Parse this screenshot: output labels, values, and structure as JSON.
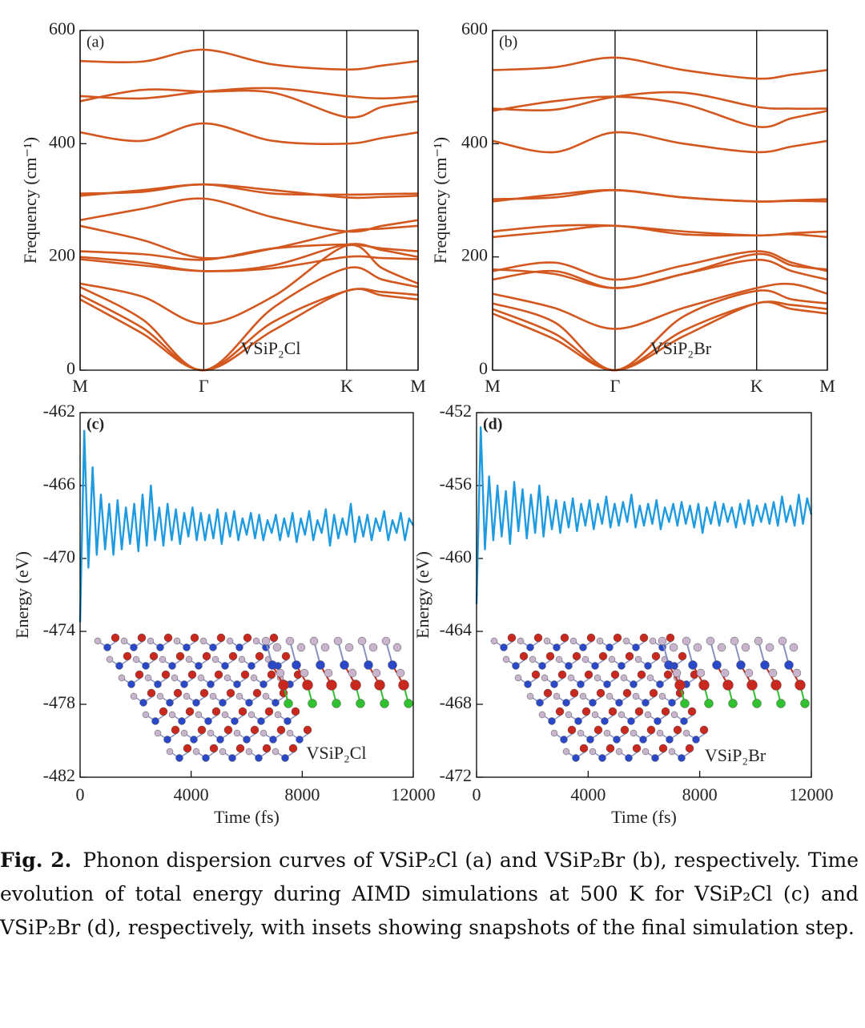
{
  "chart_data": [
    {
      "type": "line",
      "panel_label": "(a)",
      "annotation": "VSiP₂Cl",
      "ylabel": "Frequency (cm⁻¹)",
      "color": "#d2581f",
      "xgrid": true,
      "x": [
        0,
        0.29,
        0.577,
        0.9,
        1.244,
        1.41,
        1.577
      ],
      "xlim": [
        0,
        1.577
      ],
      "xticks": [
        {
          "value": 0,
          "label": "M"
        },
        {
          "value": 0.577,
          "label": "Γ"
        },
        {
          "value": 1.244,
          "label": "K"
        },
        {
          "value": 1.577,
          "label": "M"
        }
      ],
      "ylim": [
        0,
        600
      ],
      "yticks": [
        0,
        200,
        400,
        600
      ],
      "series": [
        {
          "values": [
            125,
            65,
            0,
            70,
            140,
            132,
            125
          ]
        },
        {
          "values": [
            133,
            75,
            0,
            85,
            140,
            138,
            133
          ]
        },
        {
          "values": [
            147,
            90,
            0,
            110,
            180,
            160,
            147
          ]
        },
        {
          "values": [
            153,
            130,
            82,
            130,
            220,
            180,
            153
          ]
        },
        {
          "values": [
            196,
            185,
            175,
            180,
            200,
            198,
            196
          ]
        },
        {
          "values": [
            200,
            190,
            175,
            185,
            222,
            212,
            200
          ]
        },
        {
          "values": [
            210,
            205,
            195,
            215,
            222,
            215,
            210
          ]
        },
        {
          "values": [
            255,
            230,
            198,
            215,
            245,
            250,
            255
          ]
        },
        {
          "values": [
            265,
            285,
            303,
            270,
            245,
            255,
            265
          ]
        },
        {
          "values": [
            308,
            318,
            328,
            318,
            305,
            306,
            308
          ]
        },
        {
          "values": [
            312,
            315,
            328,
            312,
            310,
            311,
            312
          ]
        },
        {
          "values": [
            420,
            405,
            436,
            405,
            400,
            410,
            420
          ]
        },
        {
          "values": [
            475,
            495,
            492,
            490,
            447,
            465,
            475
          ]
        },
        {
          "values": [
            484,
            480,
            492,
            498,
            484,
            480,
            484
          ]
        },
        {
          "values": [
            546,
            545,
            566,
            540,
            531,
            538,
            546
          ]
        }
      ]
    },
    {
      "type": "line",
      "panel_label": "(b)",
      "annotation": "VSiP₂Br",
      "ylabel": "Frequency (cm⁻¹)",
      "color": "#d2581f",
      "xgrid": true,
      "x": [
        0,
        0.29,
        0.577,
        0.9,
        1.244,
        1.41,
        1.577
      ],
      "xlim": [
        0,
        1.577
      ],
      "xticks": [
        {
          "value": 0,
          "label": "M"
        },
        {
          "value": 0.577,
          "label": "Γ"
        },
        {
          "value": 1.244,
          "label": "K"
        },
        {
          "value": 1.577,
          "label": "M"
        }
      ],
      "ylim": [
        0,
        600
      ],
      "yticks": [
        0,
        200,
        400,
        600
      ],
      "series": [
        {
          "values": [
            100,
            55,
            0,
            60,
            118,
            108,
            100
          ]
        },
        {
          "values": [
            108,
            65,
            0,
            70,
            118,
            115,
            108
          ]
        },
        {
          "values": [
            118,
            85,
            0,
            95,
            140,
            125,
            118
          ]
        },
        {
          "values": [
            135,
            110,
            73,
            110,
            145,
            152,
            135
          ]
        },
        {
          "values": [
            160,
            175,
            145,
            170,
            195,
            175,
            160
          ]
        },
        {
          "values": [
            175,
            190,
            160,
            185,
            210,
            190,
            175
          ]
        },
        {
          "values": [
            178,
            170,
            145,
            170,
            205,
            185,
            178
          ]
        },
        {
          "values": [
            235,
            245,
            255,
            240,
            238,
            240,
            235
          ]
        },
        {
          "values": [
            245,
            255,
            255,
            245,
            238,
            242,
            245
          ]
        },
        {
          "values": [
            298,
            310,
            318,
            305,
            298,
            299,
            298
          ]
        },
        {
          "values": [
            302,
            305,
            318,
            305,
            298,
            300,
            302
          ]
        },
        {
          "values": [
            405,
            385,
            420,
            400,
            385,
            395,
            405
          ]
        },
        {
          "values": [
            458,
            475,
            483,
            470,
            430,
            445,
            458
          ]
        },
        {
          "values": [
            462,
            460,
            483,
            490,
            465,
            462,
            462
          ]
        },
        {
          "values": [
            530,
            535,
            552,
            530,
            515,
            522,
            530
          ]
        }
      ]
    },
    {
      "type": "line",
      "panel_label": "(c)",
      "annotation": "VSiP₂Cl",
      "ylabel": "Energy (eV)",
      "xlabel": "Time (fs)",
      "color": "#1e9ae0",
      "xlim": [
        0,
        12000
      ],
      "xticks": [
        0,
        4000,
        8000,
        12000
      ],
      "ylim": [
        -482,
        -462
      ],
      "yticks": [
        -482,
        -478,
        -474,
        -470,
        -466,
        -462
      ],
      "x": [
        0,
        150,
        300,
        450,
        600,
        750,
        900,
        1050,
        1200,
        1350,
        1500,
        1650,
        1800,
        1950,
        2100,
        2250,
        2400,
        2550,
        2700,
        2850,
        3000,
        3150,
        3300,
        3450,
        3600,
        3750,
        3900,
        4050,
        4200,
        4350,
        4500,
        4650,
        4800,
        4950,
        5100,
        5250,
        5400,
        5550,
        5700,
        5850,
        6000,
        6150,
        6300,
        6450,
        6600,
        6750,
        6900,
        7050,
        7200,
        7350,
        7500,
        7650,
        7800,
        7950,
        8100,
        8250,
        8400,
        8550,
        8700,
        8850,
        9000,
        9150,
        9300,
        9450,
        9600,
        9750,
        9900,
        10050,
        10200,
        10350,
        10500,
        10650,
        10800,
        10950,
        11100,
        11250,
        11400,
        11550,
        11700,
        11850,
        12000
      ],
      "series": [
        {
          "values": [
            -473.5,
            -463,
            -470.5,
            -465,
            -469.8,
            -466.5,
            -469.5,
            -467,
            -469.8,
            -466.8,
            -469.5,
            -467.2,
            -469.2,
            -467,
            -469.6,
            -466.5,
            -469.3,
            -466,
            -469,
            -467.2,
            -469.3,
            -467,
            -469,
            -467.3,
            -469.2,
            -467.5,
            -468.8,
            -467.2,
            -469,
            -467.5,
            -469,
            -467.6,
            -468.9,
            -467.3,
            -469.2,
            -467.5,
            -468.8,
            -467.4,
            -469,
            -467.8,
            -468.7,
            -467.5,
            -468.9,
            -467.6,
            -469,
            -467.9,
            -468.6,
            -467.6,
            -469,
            -467.8,
            -468.8,
            -467.5,
            -469.1,
            -467.8,
            -468.7,
            -467.4,
            -469,
            -467.9,
            -468.6,
            -467.3,
            -469.3,
            -467.6,
            -468.9,
            -467.8,
            -468.7,
            -467,
            -469.1,
            -467.7,
            -468.8,
            -467.6,
            -469,
            -467.8,
            -468.5,
            -467.4,
            -469,
            -467.9,
            -468.6,
            -467.5,
            -469,
            -467.8,
            -468.2
          ]
        }
      ]
    },
    {
      "type": "line",
      "panel_label": "(d)",
      "annotation": "VSiP₂Br",
      "ylabel": "Energy (eV)",
      "xlabel": "Time (fs)",
      "color": "#1e9ae0",
      "xlim": [
        0,
        12000
      ],
      "xticks": [
        0,
        4000,
        8000,
        12000
      ],
      "ylim": [
        -472,
        -452
      ],
      "yticks": [
        -472,
        -468,
        -464,
        -460,
        -456,
        -452
      ],
      "x": [
        0,
        150,
        300,
        450,
        600,
        750,
        900,
        1050,
        1200,
        1350,
        1500,
        1650,
        1800,
        1950,
        2100,
        2250,
        2400,
        2550,
        2700,
        2850,
        3000,
        3150,
        3300,
        3450,
        3600,
        3750,
        3900,
        4050,
        4200,
        4350,
        4500,
        4650,
        4800,
        4950,
        5100,
        5250,
        5400,
        5550,
        5700,
        5850,
        6000,
        6150,
        6300,
        6450,
        6600,
        6750,
        6900,
        7050,
        7200,
        7350,
        7500,
        7650,
        7800,
        7950,
        8100,
        8250,
        8400,
        8550,
        8700,
        8850,
        9000,
        9150,
        9300,
        9450,
        9600,
        9750,
        9900,
        10050,
        10200,
        10350,
        10500,
        10650,
        10800,
        10950,
        11100,
        11250,
        11400,
        11550,
        11700,
        11850,
        12000
      ],
      "series": [
        {
          "values": [
            -462.5,
            -452.8,
            -459.5,
            -455.5,
            -459,
            -456,
            -458.8,
            -456.3,
            -459.2,
            -455.8,
            -458.5,
            -456.2,
            -458.9,
            -456.5,
            -458.6,
            -456,
            -458.8,
            -456.6,
            -458.4,
            -456.8,
            -458.6,
            -456.9,
            -458.3,
            -456.7,
            -458.5,
            -457,
            -458.2,
            -456.8,
            -458.4,
            -457,
            -458.1,
            -456.6,
            -458.3,
            -457,
            -458.2,
            -456.9,
            -458,
            -456.5,
            -458.3,
            -457.1,
            -458.2,
            -457,
            -458.1,
            -456.8,
            -458.4,
            -457.2,
            -458,
            -457,
            -458.2,
            -456.9,
            -458.1,
            -457.1,
            -458.3,
            -457,
            -458.6,
            -457.2,
            -458.1,
            -456.9,
            -458.2,
            -457,
            -458,
            -457.2,
            -458.3,
            -457,
            -458.1,
            -456.8,
            -458.2,
            -457.1,
            -458,
            -457,
            -458.1,
            -456.9,
            -458.2,
            -456.6,
            -458,
            -457.1,
            -458.2,
            -456.5,
            -458.1,
            -456.7,
            -457.6
          ]
        }
      ]
    }
  ],
  "caption": {
    "label": "Fig. 2.",
    "text": "Phonon dispersion curves of VSiP₂Cl (a) and VSiP₂Br (b), respectively. Time evolution of total energy during AIMD simulations at 500 K for VSiP₂Cl (c) and VSiP₂Br (d), respectively, with insets showing snapshots of the final simulation step."
  }
}
